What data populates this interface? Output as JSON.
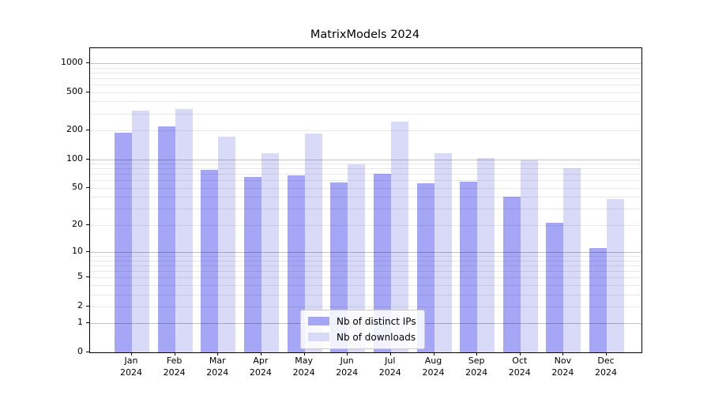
{
  "chart_data": {
    "type": "bar",
    "title": "MatrixModels 2024",
    "categories": [
      "Jan 2024",
      "Feb 2024",
      "Mar 2024",
      "Apr 2024",
      "May 2024",
      "Jun 2024",
      "Jul 2024",
      "Aug 2024",
      "Sep 2024",
      "Oct 2024",
      "Nov 2024",
      "Dec 2024"
    ],
    "series": [
      {
        "name": "Nb of distinct IPs",
        "color": "#a6a6f6",
        "values": [
          190,
          220,
          78,
          65,
          68,
          57,
          70,
          56,
          58,
          40,
          21,
          11
        ]
      },
      {
        "name": "Nb of downloads",
        "color": "#d9d9f8",
        "values": [
          320,
          335,
          172,
          115,
          185,
          88,
          245,
          116,
          102,
          97,
          80,
          38
        ]
      }
    ],
    "xlabel": "",
    "ylabel": "",
    "yscale": "symlog (position proportional to log10(1+value))",
    "y_ticks": [
      0,
      1,
      2,
      5,
      10,
      20,
      50,
      100,
      200,
      500,
      1000
    ],
    "y_minor_gridlines": [
      3,
      4,
      6,
      7,
      8,
      9,
      30,
      40,
      60,
      70,
      80,
      90,
      300,
      400,
      600,
      700,
      800,
      900
    ],
    "ylim": [
      0,
      1430
    ],
    "grid": "horizontal major and minor, light gray",
    "legend_position": "lower center",
    "colors": {
      "bar_dark": "#a6a6f6",
      "bar_light": "#d9d9f8",
      "major_grid": "#c4c4c4",
      "minor_grid": "#ececec",
      "spine": "#000000",
      "legend_border": "#cccccc"
    }
  }
}
